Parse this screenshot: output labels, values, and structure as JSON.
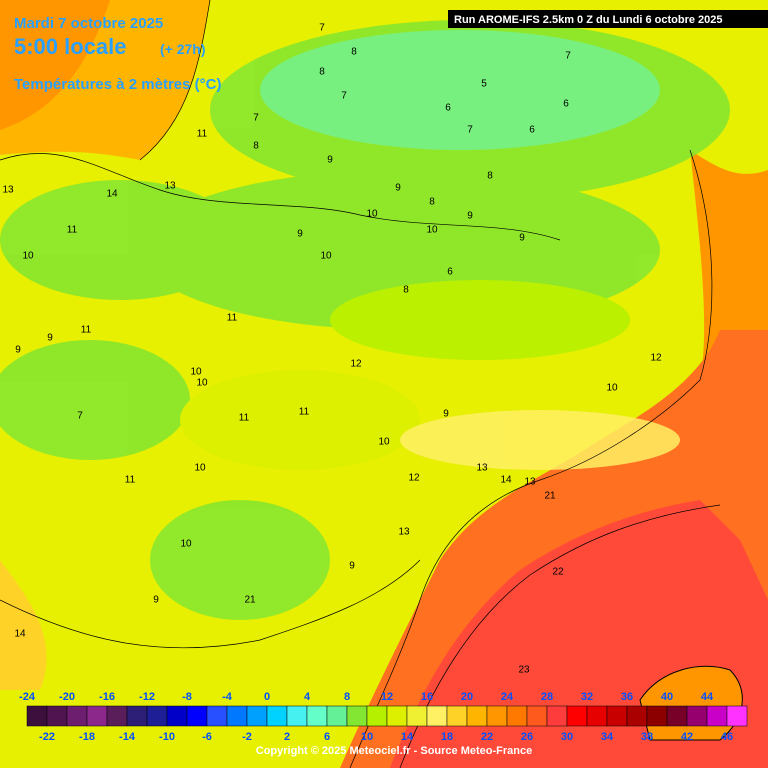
{
  "header": {
    "date": "Mardi 7 octobre 2025",
    "time": "5:00 locale",
    "lead": "(+ 27h)",
    "field": "Températures à 2 mètres (°C)",
    "run": "Run AROME-IFS 2.5km 0 Z du Lundi 6 octobre 2025"
  },
  "footer": "Copyright © 2025 Meteociel.fr - Source Meteo-France",
  "colorbar": {
    "ticks": [
      -24,
      -22,
      -20,
      -18,
      -16,
      -14,
      -12,
      -10,
      -8,
      -6,
      -4,
      -2,
      0,
      2,
      4,
      6,
      8,
      10,
      12,
      14,
      16,
      18,
      20,
      22,
      24,
      26,
      28,
      30,
      32,
      34,
      36,
      38,
      40,
      42,
      44,
      46
    ],
    "colors": [
      "#3c0f3c",
      "#501450",
      "#6e1e6e",
      "#8c288c",
      "#5a1e5a",
      "#2d1e78",
      "#1e1e96",
      "#0000c8",
      "#0000ff",
      "#2850ff",
      "#0078ff",
      "#00a0ff",
      "#00d2ff",
      "#46f0f0",
      "#64ffc8",
      "#64f096",
      "#82e632",
      "#b4f000",
      "#dcf000",
      "#f0f032",
      "#fff064",
      "#ffd228",
      "#ffb400",
      "#ff9600",
      "#ff7800",
      "#ff5a1e",
      "#ff3c3c",
      "#ff0000",
      "#e60000",
      "#c80000",
      "#aa0000",
      "#8c0000",
      "#780028",
      "#96006e",
      "#c800c8",
      "#ff32ff"
    ]
  },
  "map": {
    "labels": [
      7,
      8,
      8,
      7,
      6,
      5,
      7,
      8,
      7,
      6,
      6,
      11,
      8,
      9,
      7,
      9,
      10,
      9,
      8,
      10,
      9,
      6,
      8,
      9,
      10,
      11,
      10,
      9,
      11,
      9,
      10,
      7,
      10,
      12,
      11,
      10,
      9,
      11,
      11,
      12,
      10,
      13,
      14,
      13,
      21,
      13,
      22,
      23,
      9,
      10,
      11,
      13,
      14,
      13,
      21,
      12,
      14,
      10,
      9
    ]
  }
}
